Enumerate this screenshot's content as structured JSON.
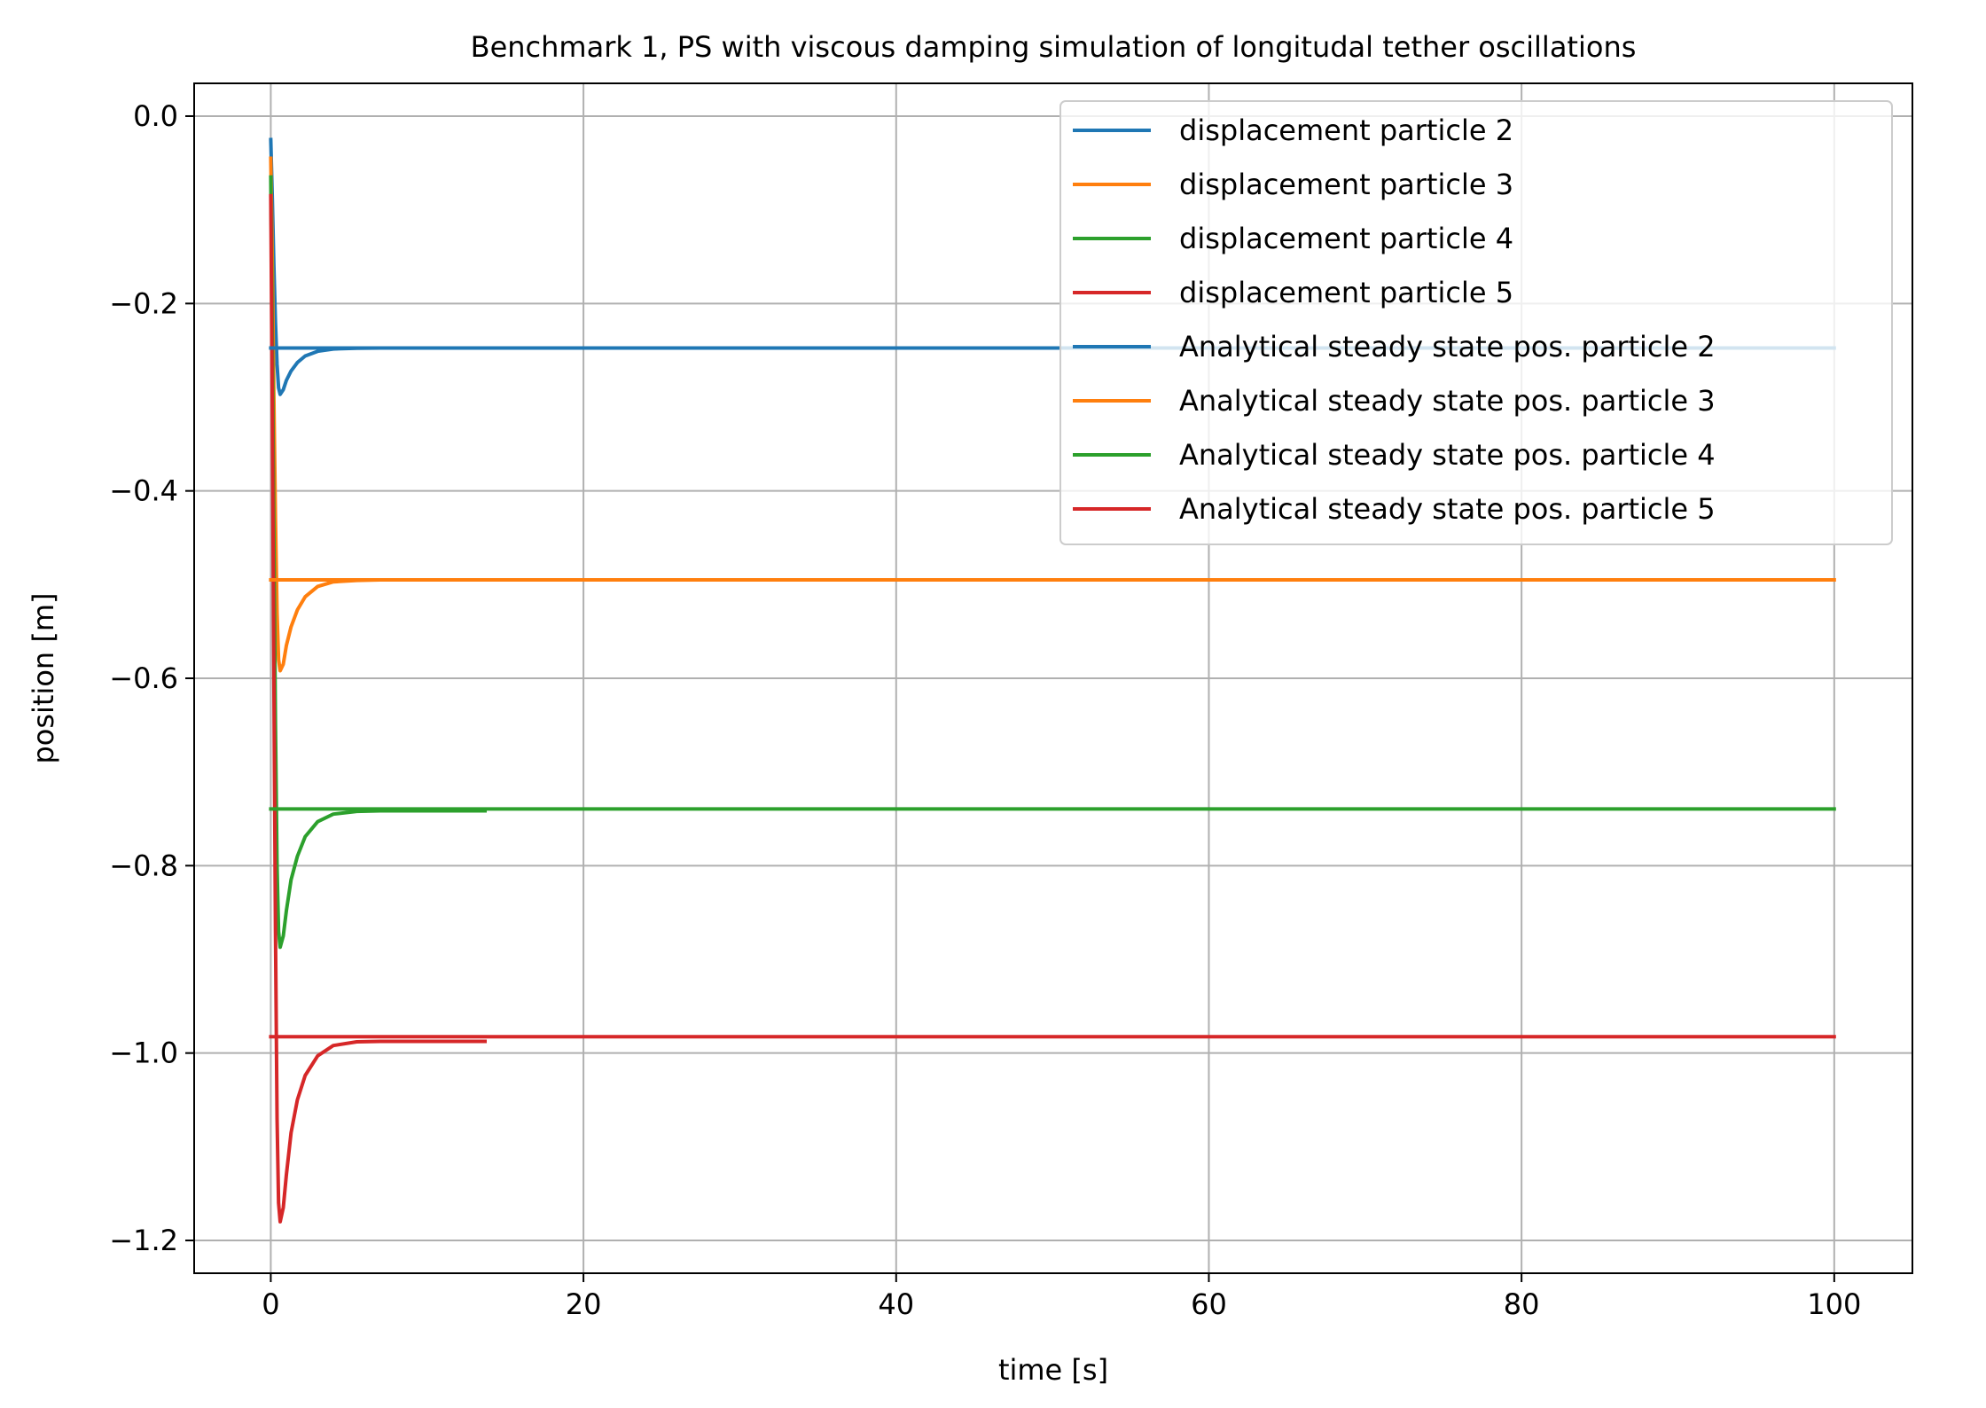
{
  "chart_data": {
    "type": "line",
    "title": "Benchmark 1, PS with viscous damping simulation of longitudal tether oscillations",
    "xlabel": "time [s]",
    "ylabel": "position [m]",
    "xlim": [
      -4.9,
      105
    ],
    "ylim": [
      -1.235,
      0.035
    ],
    "xticks": [
      0,
      20,
      40,
      60,
      80,
      100
    ],
    "xtick_labels": [
      "0",
      "20",
      "40",
      "60",
      "80",
      "100"
    ],
    "yticks": [
      0.0,
      -0.2,
      -0.4,
      -0.6,
      -0.8,
      -1.0,
      -1.2
    ],
    "ytick_labels": [
      "0.0",
      "−0.2",
      "−0.4",
      "−0.6",
      "−0.8",
      "−1.0",
      "−1.2"
    ],
    "grid": true,
    "legend_position": "top-right",
    "series": [
      {
        "name": "displacement particle 2",
        "color": "#1f77b4",
        "x": [
          0.0,
          0.1,
          0.2,
          0.3,
          0.4,
          0.5,
          0.6,
          0.8,
          1.0,
          1.3,
          1.7,
          2.2,
          3.0,
          4.0,
          5.5,
          7.0,
          10.0,
          13.7
        ],
        "y": [
          -0.025,
          -0.09,
          -0.16,
          -0.22,
          -0.265,
          -0.29,
          -0.297,
          -0.292,
          -0.282,
          -0.272,
          -0.263,
          -0.256,
          -0.251,
          -0.2485,
          -0.2477,
          -0.2475,
          -0.2475,
          -0.2475
        ]
      },
      {
        "name": "displacement particle 3",
        "color": "#ff7f0e",
        "x": [
          0.0,
          0.1,
          0.2,
          0.3,
          0.4,
          0.5,
          0.6,
          0.8,
          1.0,
          1.3,
          1.7,
          2.2,
          3.0,
          4.0,
          5.5,
          7.0,
          10.0,
          13.7
        ],
        "y": [
          -0.045,
          -0.16,
          -0.3,
          -0.43,
          -0.53,
          -0.58,
          -0.592,
          -0.585,
          -0.565,
          -0.545,
          -0.527,
          -0.513,
          -0.502,
          -0.497,
          -0.4955,
          -0.495,
          -0.495,
          -0.495
        ]
      },
      {
        "name": "displacement particle 4",
        "color": "#2ca02c",
        "x": [
          0.0,
          0.1,
          0.2,
          0.3,
          0.4,
          0.5,
          0.6,
          0.8,
          1.0,
          1.3,
          1.7,
          2.2,
          3.0,
          4.0,
          5.5,
          7.0,
          10.0,
          13.7
        ],
        "y": [
          -0.065,
          -0.24,
          -0.45,
          -0.65,
          -0.8,
          -0.87,
          -0.887,
          -0.875,
          -0.848,
          -0.815,
          -0.79,
          -0.769,
          -0.753,
          -0.745,
          -0.742,
          -0.7415,
          -0.7415,
          -0.7415
        ]
      },
      {
        "name": "displacement particle 5",
        "color": "#d62728",
        "x": [
          0.0,
          0.1,
          0.2,
          0.3,
          0.4,
          0.5,
          0.6,
          0.8,
          1.0,
          1.3,
          1.7,
          2.2,
          3.0,
          4.0,
          5.5,
          7.0,
          10.0,
          13.7
        ],
        "y": [
          -0.085,
          -0.32,
          -0.6,
          -0.87,
          -1.07,
          -1.16,
          -1.18,
          -1.165,
          -1.13,
          -1.085,
          -1.05,
          -1.024,
          -1.003,
          -0.992,
          -0.988,
          -0.9875,
          -0.9875,
          -0.9875
        ]
      },
      {
        "name": "Analytical steady state pos. particle 2",
        "color": "#1f77b4",
        "x": [
          0,
          100
        ],
        "y": [
          -0.2475,
          -0.2475
        ]
      },
      {
        "name": "Analytical steady state pos. particle 3",
        "color": "#ff7f0e",
        "x": [
          0,
          100
        ],
        "y": [
          -0.495,
          -0.495
        ]
      },
      {
        "name": "Analytical steady state pos. particle 4",
        "color": "#2ca02c",
        "x": [
          0,
          100
        ],
        "y": [
          -0.7395,
          -0.7395
        ]
      },
      {
        "name": "Analytical steady state pos. particle 5",
        "color": "#d62728",
        "x": [
          0,
          100
        ],
        "y": [
          -0.9825,
          -0.9825
        ]
      }
    ]
  }
}
